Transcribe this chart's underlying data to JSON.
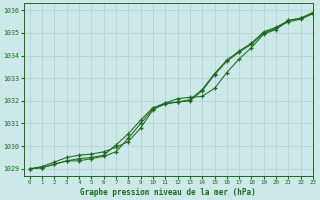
{
  "background_color": "#cde8e8",
  "grid_color": "#b0d0d0",
  "line_color": "#1a6b1a",
  "xlabel": "Graphe pression niveau de la mer (hPa)",
  "xlim": [
    -0.5,
    23
  ],
  "ylim": [
    1028.7,
    1036.3
  ],
  "yticks": [
    1029,
    1030,
    1031,
    1032,
    1033,
    1034,
    1035,
    1036
  ],
  "xticks": [
    0,
    1,
    2,
    3,
    4,
    5,
    6,
    7,
    8,
    9,
    10,
    11,
    12,
    13,
    14,
    15,
    16,
    17,
    18,
    19,
    20,
    21,
    22,
    23
  ],
  "hours": [
    0,
    1,
    2,
    3,
    4,
    5,
    6,
    7,
    8,
    9,
    10,
    11,
    12,
    13,
    14,
    15,
    16,
    17,
    18,
    19,
    20,
    21,
    22,
    23
  ],
  "line1": [
    1029.0,
    1029.1,
    1029.3,
    1029.5,
    1029.6,
    1029.65,
    1029.75,
    1029.95,
    1030.2,
    1030.8,
    1031.6,
    1031.9,
    1032.1,
    1032.15,
    1032.2,
    1032.55,
    1033.25,
    1033.85,
    1034.35,
    1034.95,
    1035.15,
    1035.55,
    1035.65,
    1035.9
  ],
  "line2": [
    1029.0,
    1029.05,
    1029.2,
    1029.35,
    1029.45,
    1029.5,
    1029.6,
    1030.05,
    1030.55,
    1031.15,
    1031.7,
    1031.9,
    1031.95,
    1032.05,
    1032.5,
    1033.2,
    1033.8,
    1034.2,
    1034.55,
    1035.05,
    1035.25,
    1035.55,
    1035.65,
    1035.9
  ],
  "line3": [
    1029.0,
    1029.05,
    1029.2,
    1029.35,
    1029.35,
    1029.45,
    1029.55,
    1029.75,
    1030.35,
    1031.0,
    1031.65,
    1031.85,
    1031.95,
    1032.0,
    1032.45,
    1033.15,
    1033.75,
    1034.15,
    1034.5,
    1035.0,
    1035.2,
    1035.5,
    1035.6,
    1035.85
  ]
}
